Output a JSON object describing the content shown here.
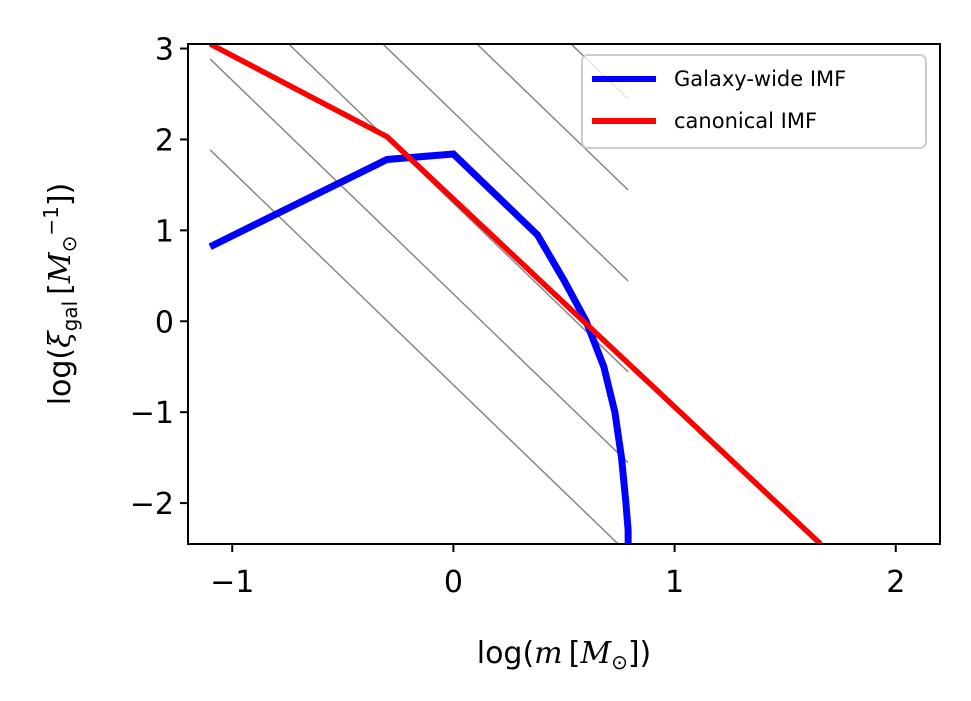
{
  "chart_data": {
    "type": "line",
    "xlabel_parts": {
      "pre": "log(",
      "var": "m",
      "unit": "M",
      "unit_sub": "⊙",
      "post": "])"
    },
    "ylabel_parts": {
      "pre": "log(",
      "var": "ξ",
      "var_sub": "gal",
      "unit": "M",
      "unit_sub": "⊙",
      "unit_sup": "−1",
      "post": "])"
    },
    "xlim": [
      -1.2,
      2.2
    ],
    "ylim": [
      -2.45,
      3.05
    ],
    "xticks": [
      -1,
      0,
      1,
      2
    ],
    "xtick_labels": [
      "−1",
      "0",
      "1",
      "2"
    ],
    "yticks": [
      -2,
      -1,
      0,
      1,
      2,
      3
    ],
    "ytick_labels": [
      "−2",
      "−1",
      "0",
      "1",
      "2",
      "3"
    ],
    "legend_position": "top-right",
    "series": [
      {
        "name": "Galaxy-wide IMF",
        "color": "#0000ff",
        "x": [
          -1.1,
          -0.3,
          0.0,
          0.38,
          0.5,
          0.6,
          0.68,
          0.73,
          0.76,
          0.78,
          0.79,
          0.79
        ],
        "y": [
          0.82,
          1.78,
          1.84,
          0.95,
          0.45,
          0.0,
          -0.5,
          -1.0,
          -1.5,
          -2.0,
          -2.3,
          -2.45
        ]
      },
      {
        "name": "canonical IMF",
        "color": "#ff0000",
        "x": [
          -1.1,
          -0.3,
          1.66
        ],
        "y": [
          3.05,
          2.03,
          -2.45
        ]
      }
    ],
    "background_lines": {
      "color": "#808080",
      "x_range": [
        -1.1,
        0.79
      ],
      "slope": -2.35,
      "intercepts_at_x0": [
        5.3,
        4.3,
        3.3,
        2.3,
        1.3,
        0.3,
        -0.7
      ]
    }
  }
}
